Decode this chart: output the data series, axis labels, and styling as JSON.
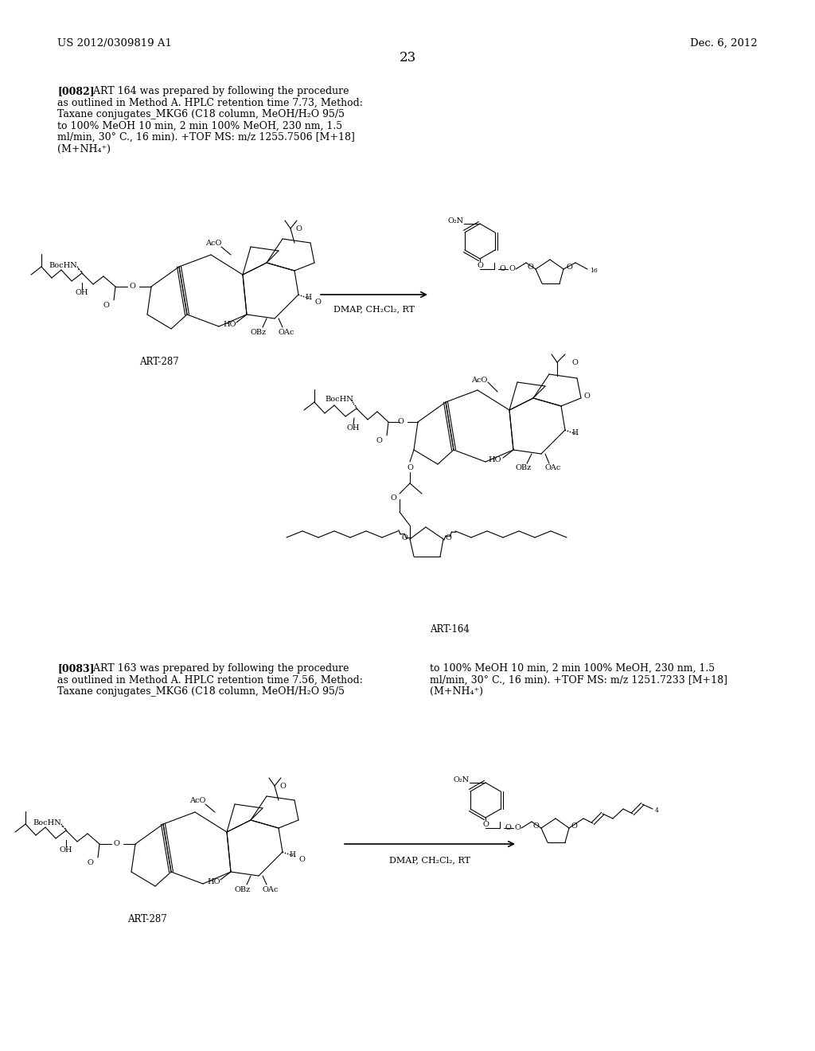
{
  "page_number": "23",
  "patent_left": "US 2012/0309819 A1",
  "patent_right": "Dec. 6, 2012",
  "para_0082": "[0082]   ART 164 was prepared by following the procedure\nas outlined in Method A. HPLC retention time 7.73, Method:\nTaxane conjugates_MKG6 (C18 column, MeOH/H₂O 95/5\nto 100% MeOH 10 min, 2 min 100% MeOH, 230 nm, 1.5\nml/min, 30° C., 16 min). +TOF MS: m/z 1255.7506 [M+18]\n(M+NH₄⁺)",
  "para_0083_left": "[0083]   ART 163 was prepared by following the procedure\nas outlined in Method A. HPLC retention time 7.56, Method:\nTaxane conjugates_MKG6 (C18 column, MeOH/H₂O 95/5",
  "para_0083_right": "to 100% MeOH 10 min, 2 min 100% MeOH, 230 nm, 1.5\nml/min, 30° C., 16 min). +TOF MS: m/z 1251.7233 [M+18]\n(M+NH₄⁺)",
  "label_art287_1": "ART-287",
  "label_art164": "ART-164",
  "label_art287_2": "ART-287",
  "label_dmap1": "DMAP, CH₂Cl₂, RT",
  "label_dmap2": "DMAP, CH₂Cl₂, RT",
  "bg_color": "#ffffff",
  "text_color": "#000000"
}
